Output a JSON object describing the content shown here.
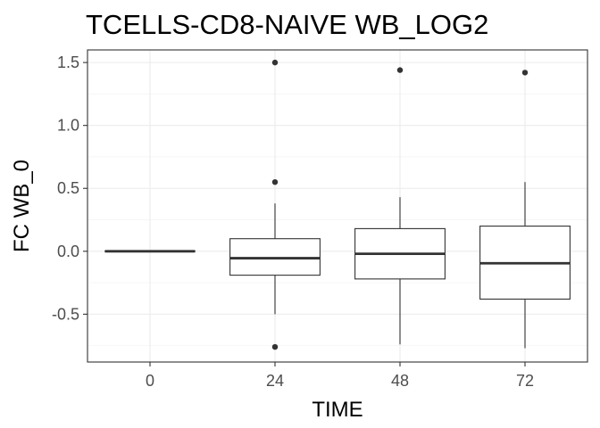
{
  "chart_data": {
    "type": "boxplot",
    "title": "TCELLS-CD8-NAIVE WB_LOG2",
    "xlabel": "TIME",
    "ylabel": "FC WB_0",
    "categories": [
      "0",
      "24",
      "48",
      "72"
    ],
    "yticks": [
      -0.5,
      0.0,
      0.5,
      1.0,
      1.5
    ],
    "ytick_labels": [
      "-0.5",
      "0.0",
      "0.5",
      "1.0",
      "1.5"
    ],
    "ylim": [
      -0.88,
      1.6
    ],
    "grid": true,
    "boxes": [
      {
        "category": "0",
        "whisker_low": 0.0,
        "q1": 0.0,
        "median": 0.0,
        "q3": 0.0,
        "whisker_high": 0.0,
        "outliers": []
      },
      {
        "category": "24",
        "whisker_low": -0.5,
        "q1": -0.19,
        "median": -0.055,
        "q3": 0.1,
        "whisker_high": 0.38,
        "outliers": [
          1.5,
          0.55,
          -0.76
        ]
      },
      {
        "category": "48",
        "whisker_low": -0.74,
        "q1": -0.22,
        "median": -0.02,
        "q3": 0.18,
        "whisker_high": 0.43,
        "outliers": [
          1.44
        ]
      },
      {
        "category": "72",
        "whisker_low": -0.77,
        "q1": -0.38,
        "median": -0.095,
        "q3": 0.2,
        "whisker_high": 0.55,
        "outliers": [
          1.42
        ]
      }
    ]
  }
}
